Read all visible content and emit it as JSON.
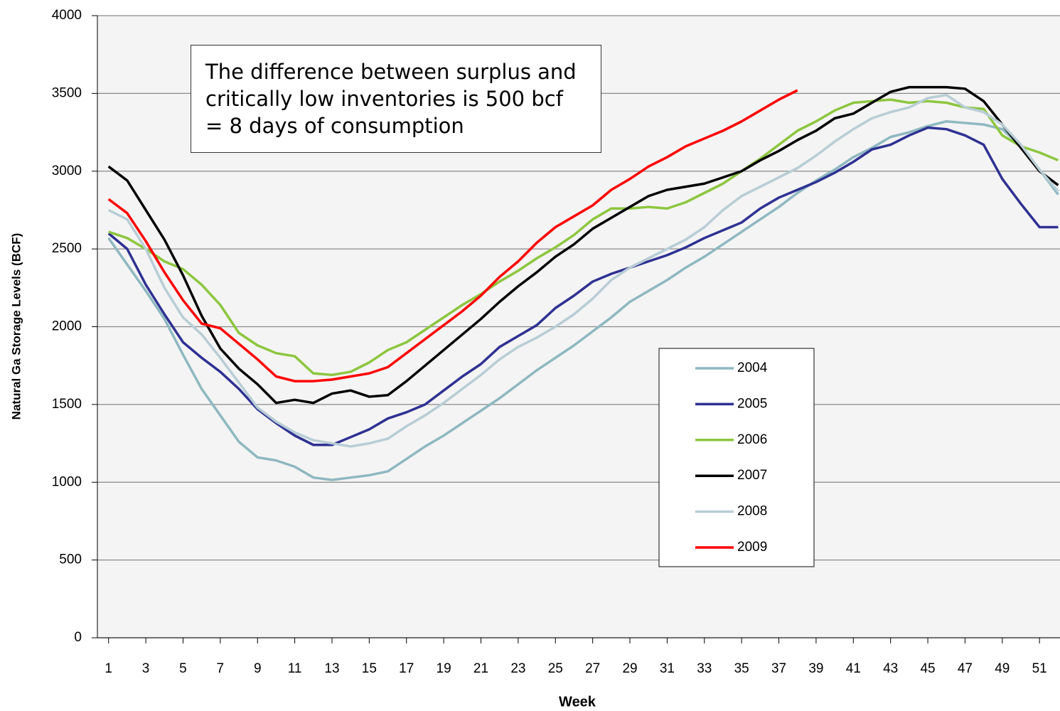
{
  "chart_data": {
    "type": "line",
    "annotation": "The difference between surplus and critically low inventories is 500 bcf = 8 days of consumption",
    "x_label": "Week",
    "y_label": "Natural Ga Storage Levels (BCF)",
    "x": [
      1,
      2,
      3,
      4,
      5,
      6,
      7,
      8,
      9,
      10,
      11,
      12,
      13,
      14,
      15,
      16,
      17,
      18,
      19,
      20,
      21,
      22,
      23,
      24,
      25,
      26,
      27,
      28,
      29,
      30,
      31,
      32,
      33,
      34,
      35,
      36,
      37,
      38,
      39,
      40,
      41,
      42,
      43,
      44,
      45,
      46,
      47,
      48,
      49,
      50,
      51,
      52
    ],
    "xlim": [
      0.4,
      52.1
    ],
    "xticks": [
      1,
      3,
      5,
      7,
      9,
      11,
      13,
      15,
      17,
      19,
      21,
      23,
      25,
      27,
      29,
      31,
      33,
      35,
      37,
      39,
      41,
      43,
      45,
      47,
      49,
      51
    ],
    "ylim": [
      0,
      4000
    ],
    "yticks": [
      0,
      500,
      1000,
      1500,
      2000,
      2500,
      3000,
      3500,
      4000
    ],
    "grid": true,
    "series": [
      {
        "name": "2004",
        "color": "#8fb8c0",
        "values": [
          2570,
          2400,
          2230,
          2050,
          1820,
          1600,
          1430,
          1260,
          1160,
          1140,
          1100,
          1030,
          1015,
          1030,
          1045,
          1070,
          1150,
          1230,
          1300,
          1380,
          1460,
          1540,
          1630,
          1720,
          1800,
          1880,
          1970,
          2060,
          2160,
          2230,
          2300,
          2380,
          2450,
          2530,
          2610,
          2690,
          2770,
          2860,
          2940,
          3010,
          3090,
          3150,
          3220,
          3250,
          3290,
          3320,
          3310,
          3300,
          3270,
          3160,
          3010,
          2850
        ]
      },
      {
        "name": "2005",
        "color": "#2e3192",
        "values": [
          2600,
          2500,
          2270,
          2080,
          1900,
          1800,
          1710,
          1600,
          1470,
          1380,
          1300,
          1240,
          1240,
          1290,
          1340,
          1410,
          1450,
          1500,
          1590,
          1680,
          1760,
          1870,
          1940,
          2010,
          2120,
          2200,
          2290,
          2340,
          2380,
          2420,
          2460,
          2510,
          2570,
          2620,
          2670,
          2760,
          2830,
          2880,
          2930,
          2990,
          3060,
          3140,
          3170,
          3230,
          3280,
          3270,
          3230,
          3170,
          2950,
          2790,
          2640,
          2640
        ]
      },
      {
        "name": "2006",
        "color": "#8dc63f",
        "values": [
          2610,
          2570,
          2500,
          2420,
          2370,
          2270,
          2140,
          1960,
          1880,
          1830,
          1810,
          1700,
          1690,
          1710,
          1770,
          1850,
          1900,
          1980,
          2060,
          2140,
          2210,
          2290,
          2360,
          2440,
          2510,
          2590,
          2690,
          2760,
          2760,
          2770,
          2760,
          2800,
          2860,
          2920,
          3000,
          3080,
          3170,
          3260,
          3320,
          3390,
          3440,
          3450,
          3460,
          3440,
          3450,
          3440,
          3410,
          3400,
          3230,
          3160,
          3120,
          3070
        ]
      },
      {
        "name": "2007",
        "color": "#000000",
        "values": [
          3030,
          2940,
          2750,
          2560,
          2330,
          2070,
          1860,
          1730,
          1630,
          1510,
          1530,
          1510,
          1570,
          1590,
          1550,
          1560,
          1650,
          1750,
          1850,
          1950,
          2050,
          2160,
          2260,
          2350,
          2450,
          2530,
          2630,
          2700,
          2770,
          2840,
          2880,
          2900,
          2920,
          2960,
          3000,
          3070,
          3130,
          3200,
          3260,
          3340,
          3370,
          3440,
          3510,
          3540,
          3540,
          3540,
          3530,
          3450,
          3300,
          3150,
          3000,
          2910
        ]
      },
      {
        "name": "2008",
        "color": "#b8cdd6",
        "values": [
          2750,
          2690,
          2500,
          2250,
          2060,
          1950,
          1800,
          1640,
          1480,
          1390,
          1320,
          1270,
          1250,
          1230,
          1250,
          1280,
          1360,
          1430,
          1510,
          1600,
          1690,
          1790,
          1870,
          1930,
          2000,
          2080,
          2180,
          2300,
          2380,
          2440,
          2500,
          2560,
          2640,
          2750,
          2840,
          2900,
          2960,
          3020,
          3100,
          3190,
          3270,
          3340,
          3380,
          3410,
          3470,
          3490,
          3410,
          3380,
          3300,
          3170,
          3010,
          2870
        ]
      },
      {
        "name": "2009",
        "color": "#ff0000",
        "values": [
          2820,
          2730,
          2550,
          2350,
          2170,
          2020,
          1990,
          1890,
          1790,
          1680,
          1650,
          1650,
          1660,
          1680,
          1700,
          1740,
          1830,
          1920,
          2010,
          2100,
          2200,
          2320,
          2420,
          2540,
          2640,
          2710,
          2780,
          2880,
          2950,
          3030,
          3090,
          3160,
          3210,
          3260,
          3320,
          3390,
          3460,
          3520,
          null,
          null,
          null,
          null,
          null,
          null,
          null,
          null,
          null,
          null,
          null,
          null,
          null,
          null
        ]
      }
    ]
  }
}
